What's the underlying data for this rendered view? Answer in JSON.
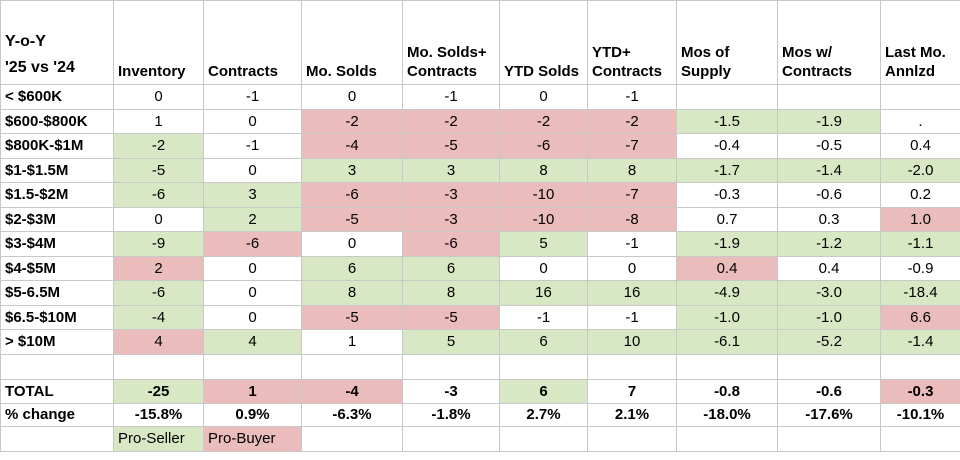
{
  "colors": {
    "pro_seller": "#d9e8c4",
    "pro_buyer": "#ebbcbc"
  },
  "header": {
    "corner": "Y-o-Y\n'25 vs '24",
    "columns": [
      "Inventory",
      "Contracts",
      "Mo. Solds",
      "Mo. Solds+\nContracts",
      "YTD Solds",
      "YTD+\nContracts",
      "Mos of\nSupply",
      "Mos w/\nContracts",
      "Last Mo.\nAnnlzd"
    ]
  },
  "rows": [
    {
      "label": "< $600K",
      "cells": [
        {
          "v": "0",
          "c": ""
        },
        {
          "v": "-1",
          "c": ""
        },
        {
          "v": "0",
          "c": ""
        },
        {
          "v": "-1",
          "c": ""
        },
        {
          "v": "0",
          "c": ""
        },
        {
          "v": "-1",
          "c": ""
        },
        {
          "v": "",
          "c": ""
        },
        {
          "v": "",
          "c": ""
        },
        {
          "v": "",
          "c": ""
        }
      ]
    },
    {
      "label": "$600-$800K",
      "cells": [
        {
          "v": "1",
          "c": ""
        },
        {
          "v": "0",
          "c": ""
        },
        {
          "v": "-2",
          "c": "r"
        },
        {
          "v": "-2",
          "c": "r"
        },
        {
          "v": "-2",
          "c": "r"
        },
        {
          "v": "-2",
          "c": "r"
        },
        {
          "v": "-1.5",
          "c": "g"
        },
        {
          "v": "-1.9",
          "c": "g"
        },
        {
          "v": ".",
          "c": ""
        }
      ]
    },
    {
      "label": "$800K-$1M",
      "cells": [
        {
          "v": "-2",
          "c": "g"
        },
        {
          "v": "-1",
          "c": ""
        },
        {
          "v": "-4",
          "c": "r"
        },
        {
          "v": "-5",
          "c": "r"
        },
        {
          "v": "-6",
          "c": "r"
        },
        {
          "v": "-7",
          "c": "r"
        },
        {
          "v": "-0.4",
          "c": ""
        },
        {
          "v": "-0.5",
          "c": ""
        },
        {
          "v": "0.4",
          "c": ""
        }
      ]
    },
    {
      "label": "$1-$1.5M",
      "cells": [
        {
          "v": "-5",
          "c": "g"
        },
        {
          "v": "0",
          "c": ""
        },
        {
          "v": "3",
          "c": "g"
        },
        {
          "v": "3",
          "c": "g"
        },
        {
          "v": "8",
          "c": "g"
        },
        {
          "v": "8",
          "c": "g"
        },
        {
          "v": "-1.7",
          "c": "g"
        },
        {
          "v": "-1.4",
          "c": "g"
        },
        {
          "v": "-2.0",
          "c": "g"
        }
      ]
    },
    {
      "label": "$1.5-$2M",
      "cells": [
        {
          "v": "-6",
          "c": "g"
        },
        {
          "v": "3",
          "c": "g"
        },
        {
          "v": "-6",
          "c": "r"
        },
        {
          "v": "-3",
          "c": "r"
        },
        {
          "v": "-10",
          "c": "r"
        },
        {
          "v": "-7",
          "c": "r"
        },
        {
          "v": "-0.3",
          "c": ""
        },
        {
          "v": "-0.6",
          "c": ""
        },
        {
          "v": "0.2",
          "c": ""
        }
      ]
    },
    {
      "label": "$2-$3M",
      "cells": [
        {
          "v": "0",
          "c": ""
        },
        {
          "v": "2",
          "c": "g"
        },
        {
          "v": "-5",
          "c": "r"
        },
        {
          "v": "-3",
          "c": "r"
        },
        {
          "v": "-10",
          "c": "r"
        },
        {
          "v": "-8",
          "c": "r"
        },
        {
          "v": "0.7",
          "c": ""
        },
        {
          "v": "0.3",
          "c": ""
        },
        {
          "v": "1.0",
          "c": "r"
        }
      ]
    },
    {
      "label": "$3-$4M",
      "cells": [
        {
          "v": "-9",
          "c": "g"
        },
        {
          "v": "-6",
          "c": "r"
        },
        {
          "v": "0",
          "c": ""
        },
        {
          "v": "-6",
          "c": "r"
        },
        {
          "v": "5",
          "c": "g"
        },
        {
          "v": "-1",
          "c": ""
        },
        {
          "v": "-1.9",
          "c": "g"
        },
        {
          "v": "-1.2",
          "c": "g"
        },
        {
          "v": "-1.1",
          "c": "g"
        }
      ]
    },
    {
      "label": "$4-$5M",
      "cells": [
        {
          "v": "2",
          "c": "r"
        },
        {
          "v": "0",
          "c": ""
        },
        {
          "v": "6",
          "c": "g"
        },
        {
          "v": "6",
          "c": "g"
        },
        {
          "v": "0",
          "c": ""
        },
        {
          "v": "0",
          "c": ""
        },
        {
          "v": "0.4",
          "c": "r"
        },
        {
          "v": "0.4",
          "c": ""
        },
        {
          "v": "-0.9",
          "c": ""
        }
      ]
    },
    {
      "label": "$5-6.5M",
      "cells": [
        {
          "v": "-6",
          "c": "g"
        },
        {
          "v": "0",
          "c": ""
        },
        {
          "v": "8",
          "c": "g"
        },
        {
          "v": "8",
          "c": "g"
        },
        {
          "v": "16",
          "c": "g"
        },
        {
          "v": "16",
          "c": "g"
        },
        {
          "v": "-4.9",
          "c": "g"
        },
        {
          "v": "-3.0",
          "c": "g"
        },
        {
          "v": "-18.4",
          "c": "g"
        }
      ]
    },
    {
      "label": "$6.5-$10M",
      "cells": [
        {
          "v": "-4",
          "c": "g"
        },
        {
          "v": "0",
          "c": ""
        },
        {
          "v": "-5",
          "c": "r"
        },
        {
          "v": "-5",
          "c": "r"
        },
        {
          "v": "-1",
          "c": ""
        },
        {
          "v": "-1",
          "c": ""
        },
        {
          "v": "-1.0",
          "c": "g"
        },
        {
          "v": "-1.0",
          "c": "g"
        },
        {
          "v": "6.6",
          "c": "r"
        }
      ]
    },
    {
      "label": "> $10M",
      "cells": [
        {
          "v": "4",
          "c": "r"
        },
        {
          "v": "4",
          "c": "g"
        },
        {
          "v": "1",
          "c": ""
        },
        {
          "v": "5",
          "c": "g"
        },
        {
          "v": "6",
          "c": "g"
        },
        {
          "v": "10",
          "c": "g"
        },
        {
          "v": "-6.1",
          "c": "g"
        },
        {
          "v": "-5.2",
          "c": "g"
        },
        {
          "v": "-1.4",
          "c": "g"
        }
      ]
    }
  ],
  "total": {
    "label": "TOTAL",
    "cells": [
      {
        "v": "-25",
        "c": "g"
      },
      {
        "v": "1",
        "c": "r"
      },
      {
        "v": "-4",
        "c": "r"
      },
      {
        "v": "-3",
        "c": ""
      },
      {
        "v": "6",
        "c": "g"
      },
      {
        "v": "7",
        "c": ""
      },
      {
        "v": "-0.8",
        "c": ""
      },
      {
        "v": "-0.6",
        "c": ""
      },
      {
        "v": "-0.3",
        "c": "r"
      }
    ]
  },
  "pct": {
    "label": "% change",
    "cells": [
      "-15.8%",
      "0.9%",
      "-6.3%",
      "-1.8%",
      "2.7%",
      "2.1%",
      "-18.0%",
      "-17.6%",
      "-10.1%"
    ]
  },
  "legend": {
    "pro_seller": "Pro-Seller",
    "pro_buyer": "Pro-Buyer"
  }
}
